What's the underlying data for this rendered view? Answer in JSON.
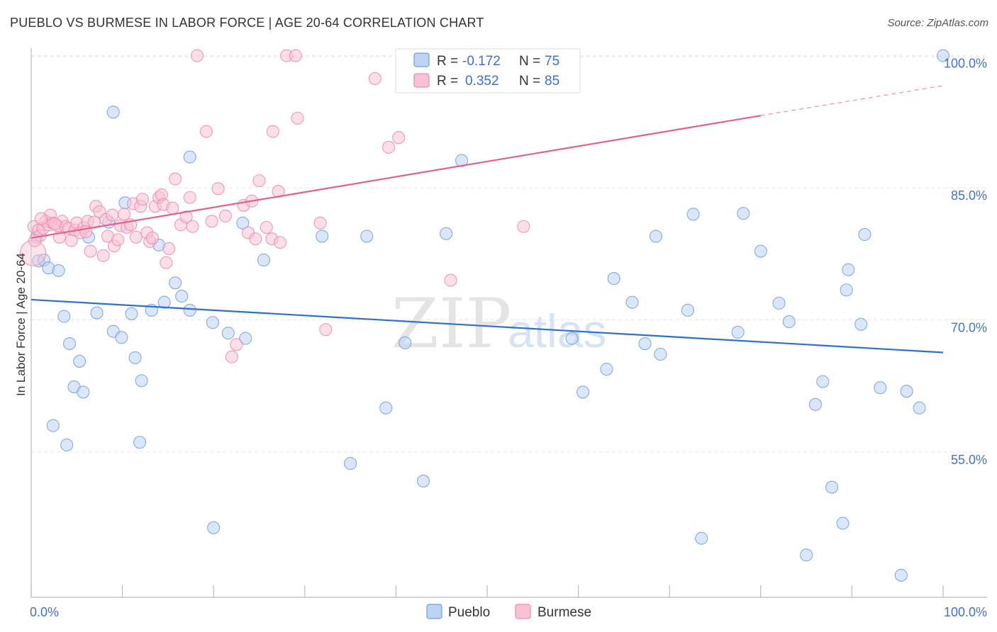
{
  "title": "PUEBLO VS BURMESE IN LABOR FORCE | AGE 20-64 CORRELATION CHART",
  "source": "Source: ZipAtlas.com",
  "watermark": {
    "part1": "ZIP",
    "part2": "atlas"
  },
  "colors": {
    "pueblo": "#6f9fe0",
    "pueblo_fill": "#bdd3f3",
    "pueblo_line": "#2e6fcf",
    "burmese": "#ec8aaa",
    "burmese_fill": "#f7c3d3",
    "burmese_line": "#e0628c",
    "tick": "#4472c4",
    "grid": "#e6e6e6"
  },
  "legend": {
    "rows": [
      {
        "r_label": "R =",
        "r_value": "-0.172",
        "n_label": "N =",
        "n_value": "75"
      },
      {
        "r_label": "R =",
        "r_value": "0.352",
        "n_label": "N =",
        "n_value": "85"
      }
    ]
  },
  "chart_data": {
    "type": "scatter",
    "title": "PUEBLO VS BURMESE IN LABOR FORCE | AGE 20-64 CORRELATION CHART",
    "xlabel": "",
    "ylabel": "In Labor Force | Age 20-64",
    "xlim": [
      0,
      100
    ],
    "ylim": [
      38.5,
      101.5
    ],
    "x_tick_labels": [
      "0.0%",
      "100.0%"
    ],
    "y_ticks": [
      55,
      70,
      85,
      100
    ],
    "y_tick_labels": [
      "55.0%",
      "70.0%",
      "85.0%",
      "100.0%"
    ],
    "grid": true,
    "legend_position": "top-center",
    "series": [
      {
        "name": "Pueblo",
        "r": -0.172,
        "n": 75,
        "trend": {
          "x_start": 0,
          "y_start": 72.3,
          "x_end": 100,
          "y_end": 66.3
        },
        "points": [
          [
            0.6,
            79.4
          ],
          [
            0.8,
            76.7
          ],
          [
            1.4,
            76.8
          ],
          [
            1.9,
            75.9
          ],
          [
            3.0,
            75.6
          ],
          [
            3.6,
            70.4
          ],
          [
            4.2,
            67.3
          ],
          [
            5.3,
            65.3
          ],
          [
            4.7,
            62.4
          ],
          [
            5.7,
            61.8
          ],
          [
            2.4,
            58.0
          ],
          [
            3.9,
            55.8
          ],
          [
            6.3,
            79.4
          ],
          [
            7.2,
            70.8
          ],
          [
            8.5,
            81.1
          ],
          [
            9.0,
            93.6
          ],
          [
            9.0,
            68.7
          ],
          [
            9.9,
            68.0
          ],
          [
            10.3,
            83.3
          ],
          [
            11.0,
            70.7
          ],
          [
            11.4,
            65.7
          ],
          [
            12.1,
            63.1
          ],
          [
            11.9,
            56.1
          ],
          [
            13.2,
            71.1
          ],
          [
            14.0,
            78.5
          ],
          [
            14.6,
            72.0
          ],
          [
            15.8,
            74.2
          ],
          [
            16.5,
            72.7
          ],
          [
            17.4,
            71.1
          ],
          [
            17.4,
            88.5
          ],
          [
            19.9,
            69.7
          ],
          [
            20.0,
            46.4
          ],
          [
            21.6,
            68.5
          ],
          [
            23.2,
            81.0
          ],
          [
            23.5,
            67.9
          ],
          [
            25.5,
            76.8
          ],
          [
            31.9,
            79.5
          ],
          [
            35.0,
            53.7
          ],
          [
            36.8,
            79.5
          ],
          [
            38.9,
            60.0
          ],
          [
            41.0,
            67.4
          ],
          [
            43.0,
            51.7
          ],
          [
            45.5,
            79.8
          ],
          [
            47.2,
            88.1
          ],
          [
            59.3,
            67.9
          ],
          [
            60.5,
            61.8
          ],
          [
            63.1,
            64.4
          ],
          [
            63.9,
            74.7
          ],
          [
            65.9,
            72.0
          ],
          [
            67.3,
            67.3
          ],
          [
            68.5,
            79.5
          ],
          [
            69.0,
            66.1
          ],
          [
            72.0,
            71.1
          ],
          [
            72.6,
            82.0
          ],
          [
            73.5,
            45.2
          ],
          [
            77.5,
            68.6
          ],
          [
            78.1,
            82.1
          ],
          [
            80.0,
            77.8
          ],
          [
            82.0,
            71.9
          ],
          [
            83.1,
            69.8
          ],
          [
            85.0,
            43.3
          ],
          [
            86.0,
            60.4
          ],
          [
            86.8,
            63.0
          ],
          [
            87.8,
            51.0
          ],
          [
            89.0,
            46.9
          ],
          [
            89.4,
            73.4
          ],
          [
            89.6,
            75.7
          ],
          [
            91.0,
            69.5
          ],
          [
            91.4,
            79.7
          ],
          [
            93.1,
            62.3
          ],
          [
            95.4,
            41.0
          ],
          [
            96.0,
            61.9
          ],
          [
            97.4,
            60.0
          ],
          [
            100.0,
            100.0
          ],
          [
            42.2,
            100.0
          ]
        ]
      },
      {
        "name": "Burmese",
        "r": 0.352,
        "n": 85,
        "trend": {
          "x_start": 0,
          "y_start": 79.3,
          "x_end": 80,
          "y_end": 93.2,
          "dashed_to_x": 100,
          "dashed_to_y": 96.6
        },
        "points": [
          [
            0.2,
            77.6
          ],
          [
            0.3,
            80.6
          ],
          [
            0.8,
            80.2
          ],
          [
            1.0,
            79.6
          ],
          [
            1.3,
            80.4
          ],
          [
            1.6,
            81.2
          ],
          [
            1.9,
            80.8
          ],
          [
            2.1,
            81.9
          ],
          [
            2.4,
            81.0
          ],
          [
            2.9,
            80.7
          ],
          [
            3.1,
            79.4
          ],
          [
            3.4,
            81.2
          ],
          [
            3.8,
            80.6
          ],
          [
            4.1,
            80.4
          ],
          [
            4.4,
            79.0
          ],
          [
            4.8,
            80.2
          ],
          [
            5.0,
            81.0
          ],
          [
            5.4,
            79.9
          ],
          [
            5.8,
            80.5
          ],
          [
            6.2,
            81.2
          ],
          [
            6.5,
            77.8
          ],
          [
            6.9,
            81.1
          ],
          [
            7.1,
            82.9
          ],
          [
            7.5,
            82.3
          ],
          [
            7.9,
            77.3
          ],
          [
            8.2,
            81.4
          ],
          [
            8.4,
            79.5
          ],
          [
            8.9,
            81.9
          ],
          [
            9.1,
            78.4
          ],
          [
            9.5,
            79.1
          ],
          [
            9.8,
            80.7
          ],
          [
            10.2,
            82.0
          ],
          [
            10.5,
            80.5
          ],
          [
            10.9,
            80.8
          ],
          [
            11.2,
            83.2
          ],
          [
            11.5,
            79.4
          ],
          [
            12.0,
            82.9
          ],
          [
            12.2,
            83.7
          ],
          [
            12.7,
            79.9
          ],
          [
            13.0,
            78.9
          ],
          [
            13.3,
            79.3
          ],
          [
            13.6,
            82.9
          ],
          [
            14.0,
            83.9
          ],
          [
            14.3,
            84.2
          ],
          [
            14.5,
            83.1
          ],
          [
            14.8,
            76.5
          ],
          [
            15.1,
            78.1
          ],
          [
            15.5,
            82.7
          ],
          [
            15.8,
            86.0
          ],
          [
            16.4,
            80.8
          ],
          [
            17.0,
            81.7
          ],
          [
            17.4,
            83.9
          ],
          [
            17.7,
            80.6
          ],
          [
            18.2,
            100.0
          ],
          [
            19.2,
            91.4
          ],
          [
            19.8,
            81.2
          ],
          [
            20.5,
            84.9
          ],
          [
            21.3,
            81.8
          ],
          [
            22.0,
            65.8
          ],
          [
            22.5,
            67.2
          ],
          [
            23.3,
            83.0
          ],
          [
            23.8,
            79.9
          ],
          [
            24.2,
            83.5
          ],
          [
            24.6,
            79.2
          ],
          [
            25.0,
            85.8
          ],
          [
            25.8,
            80.5
          ],
          [
            26.4,
            79.2
          ],
          [
            26.5,
            91.4
          ],
          [
            27.1,
            84.6
          ],
          [
            27.3,
            78.8
          ],
          [
            28.0,
            100.0
          ],
          [
            29.0,
            100.0
          ],
          [
            29.2,
            92.9
          ],
          [
            31.7,
            81.0
          ],
          [
            32.3,
            68.9
          ],
          [
            37.7,
            97.4
          ],
          [
            39.2,
            89.6
          ],
          [
            40.3,
            90.7
          ],
          [
            46.0,
            74.5
          ],
          [
            54.0,
            80.6
          ],
          [
            56.2,
            100.0
          ],
          [
            0.4,
            79.0
          ],
          [
            1.1,
            81.5
          ],
          [
            2.6,
            80.9
          ],
          [
            6.0,
            80.0
          ]
        ]
      }
    ]
  }
}
